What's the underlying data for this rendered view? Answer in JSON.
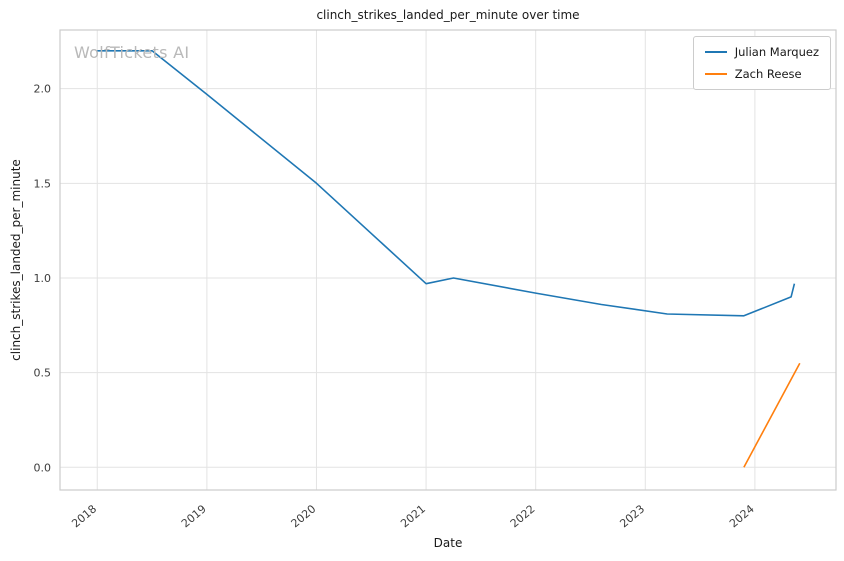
{
  "watermark": "WolfTickets AI",
  "chart_data": {
    "type": "line",
    "title": "clinch_strikes_landed_per_minute over time",
    "xlabel": "Date",
    "ylabel": "clinch_strikes_landed_per_minute",
    "x_ticks": [
      2018,
      2019,
      2020,
      2021,
      2022,
      2023,
      2024
    ],
    "y_ticks": [
      0.0,
      0.5,
      1.0,
      1.5,
      2.0
    ],
    "xlim": [
      2017.66,
      2024.74
    ],
    "ylim": [
      -0.12,
      2.31
    ],
    "grid": true,
    "grid_color": "#e3e3e3",
    "border_color": "#cccccc",
    "tick_label_color": "#3d3d3d",
    "legend_position": "upper right",
    "series": [
      {
        "name": "Julian Marquez",
        "color": "#1f77b4",
        "x": [
          2018.0,
          2018.5,
          2019.0,
          2020.0,
          2021.0,
          2021.25,
          2022.0,
          2022.6,
          2023.2,
          2023.9,
          2024.33,
          2024.36
        ],
        "y": [
          2.2,
          2.2,
          1.97,
          1.5,
          0.97,
          1.0,
          0.92,
          0.86,
          0.81,
          0.8,
          0.9,
          0.97
        ]
      },
      {
        "name": "Zach Reese",
        "color": "#ff7f0e",
        "x": [
          2023.9,
          2024.41
        ],
        "y": [
          0.0,
          0.55
        ]
      }
    ]
  }
}
